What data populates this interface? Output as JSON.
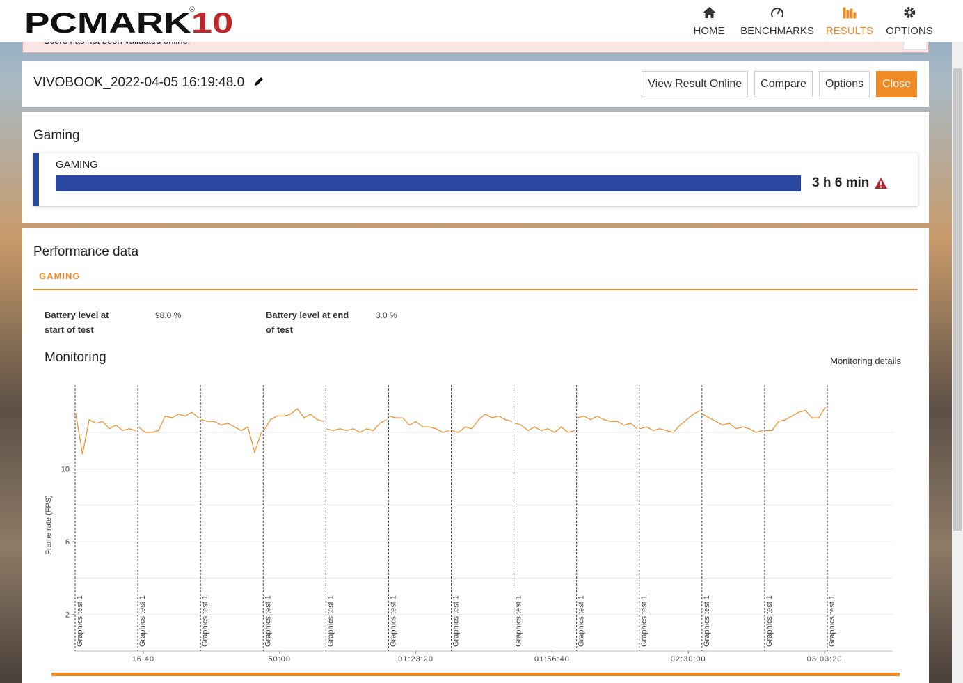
{
  "header": {
    "logo": "PCMARK",
    "logo_suffix": "10",
    "logo_mark": "®",
    "nav": [
      {
        "label": "HOME"
      },
      {
        "label": "BENCHMARKS"
      },
      {
        "label": "RESULTS",
        "active": true
      },
      {
        "label": "OPTIONS"
      }
    ]
  },
  "notice": "Score has not been validated online.",
  "result": {
    "title": "VIVOBOOK_2022-04-05 16:19:48.0",
    "buttons": [
      {
        "label": "View Result Online"
      },
      {
        "label": "Compare"
      },
      {
        "label": "Options"
      },
      {
        "label": "Close",
        "primary": true
      }
    ]
  },
  "score": {
    "section": "Gaming",
    "label": "GAMING",
    "value_text": "3 h 6 min"
  },
  "performance": {
    "title": "Performance data",
    "tab": "GAMING",
    "stats": [
      {
        "label": "Battery level at start of test",
        "value": "98.0 %"
      },
      {
        "label": "Battery level at end of test",
        "value": "3.0 %"
      }
    ],
    "monitoring_title": "Monitoring",
    "monitoring_link": "Monitoring details"
  },
  "chart_data": {
    "type": "line",
    "y_label": "Frame rate (FPS)",
    "xlim": [
      0,
      12000
    ],
    "xticks": [
      {
        "value": 1000,
        "label": "16:40"
      },
      {
        "value": 3000,
        "label": "50:00"
      },
      {
        "value": 5000,
        "label": "01:23:20"
      },
      {
        "value": 7000,
        "label": "01:56:40"
      },
      {
        "value": 9000,
        "label": "02:30:00"
      },
      {
        "value": 11000,
        "label": "03:03:20"
      }
    ],
    "ylim": [
      0,
      14.6
    ],
    "yticks": [
      2,
      6,
      10
    ],
    "yminorticks": [
      4,
      8,
      12
    ],
    "grid": true,
    "markers": [
      {
        "x": 0,
        "label": "Graphics test 1"
      },
      {
        "x": 920,
        "label": "Graphics test 1"
      },
      {
        "x": 1840,
        "label": "Graphics test 1"
      },
      {
        "x": 2760,
        "label": "Graphics test 1"
      },
      {
        "x": 3680,
        "label": "Graphics test 1"
      },
      {
        "x": 4600,
        "label": "Graphics test 1"
      },
      {
        "x": 5520,
        "label": "Graphics test 1"
      },
      {
        "x": 6440,
        "label": "Graphics test 1"
      },
      {
        "x": 7360,
        "label": "Graphics test 1"
      },
      {
        "x": 8280,
        "label": "Graphics test 1"
      },
      {
        "x": 9200,
        "label": "Graphics test 1"
      },
      {
        "x": 10120,
        "label": "Graphics test 1"
      },
      {
        "x": 11040,
        "label": "Graphics test 1"
      }
    ],
    "series": [
      {
        "color": "#f08a24",
        "x": [
          10,
          108,
          206,
          304,
          402,
          500,
          598,
          696,
          794,
          892,
          915,
          930,
          1028,
          1126,
          1224,
          1322,
          1420,
          1518,
          1616,
          1714,
          1812,
          1835,
          1850,
          1948,
          2046,
          2144,
          2242,
          2340,
          2438,
          2536,
          2634,
          2732,
          2755,
          2770,
          2868,
          2966,
          3064,
          3162,
          3260,
          3358,
          3456,
          3554,
          3652,
          3675,
          3690,
          3788,
          3886,
          3984,
          4082,
          4180,
          4278,
          4376,
          4474,
          4572,
          4595,
          4610,
          4708,
          4806,
          4904,
          5002,
          5100,
          5198,
          5296,
          5394,
          5492,
          5515,
          5530,
          5628,
          5726,
          5824,
          5922,
          6020,
          6118,
          6216,
          6314,
          6412,
          6435,
          6450,
          6548,
          6646,
          6744,
          6842,
          6940,
          7038,
          7136,
          7234,
          7332,
          7355,
          7370,
          7468,
          7566,
          7664,
          7762,
          7860,
          7958,
          8056,
          8154,
          8252,
          8275,
          8290,
          8388,
          8486,
          8584,
          8682,
          8780,
          8878,
          8976,
          9074,
          9172,
          9195,
          9210,
          9308,
          9406,
          9504,
          9602,
          9700,
          9798,
          9896,
          9994,
          10092,
          10115,
          10130,
          10228,
          10326,
          10424,
          10522,
          10620,
          10718,
          10816,
          10914,
          11012
        ],
        "values": [
          13.0,
          10.8,
          12.7,
          12.5,
          12.6,
          12.2,
          12.4,
          12.1,
          12.2,
          12.1,
          null,
          12.3,
          12.0,
          12.0,
          12.1,
          12.9,
          12.8,
          13.0,
          12.9,
          13.1,
          12.8,
          null,
          12.7,
          12.6,
          12.6,
          12.4,
          12.5,
          12.3,
          12.1,
          12.3,
          10.9,
          12.0,
          null,
          12.1,
          12.7,
          12.9,
          12.9,
          13.0,
          13.3,
          12.8,
          13.0,
          12.7,
          12.6,
          null,
          12.2,
          12.1,
          12.2,
          12.1,
          12.2,
          12.0,
          12.2,
          12.1,
          12.5,
          12.7,
          null,
          12.9,
          12.8,
          12.8,
          12.4,
          12.6,
          12.3,
          12.3,
          12.2,
          12.0,
          12.1,
          null,
          12.1,
          12.0,
          12.3,
          12.2,
          12.7,
          13.0,
          12.8,
          12.9,
          12.7,
          12.6,
          null,
          12.5,
          12.4,
          12.1,
          12.3,
          12.1,
          12.2,
          12.0,
          12.3,
          12.0,
          12.1,
          null,
          12.8,
          12.9,
          12.7,
          12.9,
          12.7,
          12.6,
          12.6,
          12.4,
          12.5,
          12.2,
          null,
          12.2,
          12.3,
          12.1,
          12.2,
          12.1,
          12.0,
          12.4,
          12.7,
          13.0,
          13.2,
          null,
          13.0,
          12.8,
          12.6,
          12.4,
          12.5,
          12.2,
          12.3,
          12.2,
          12.0,
          12.1,
          null,
          12.1,
          12.1,
          12.6,
          12.7,
          12.9,
          13.1,
          13.2,
          12.8,
          12.8,
          13.4
        ]
      }
    ]
  }
}
